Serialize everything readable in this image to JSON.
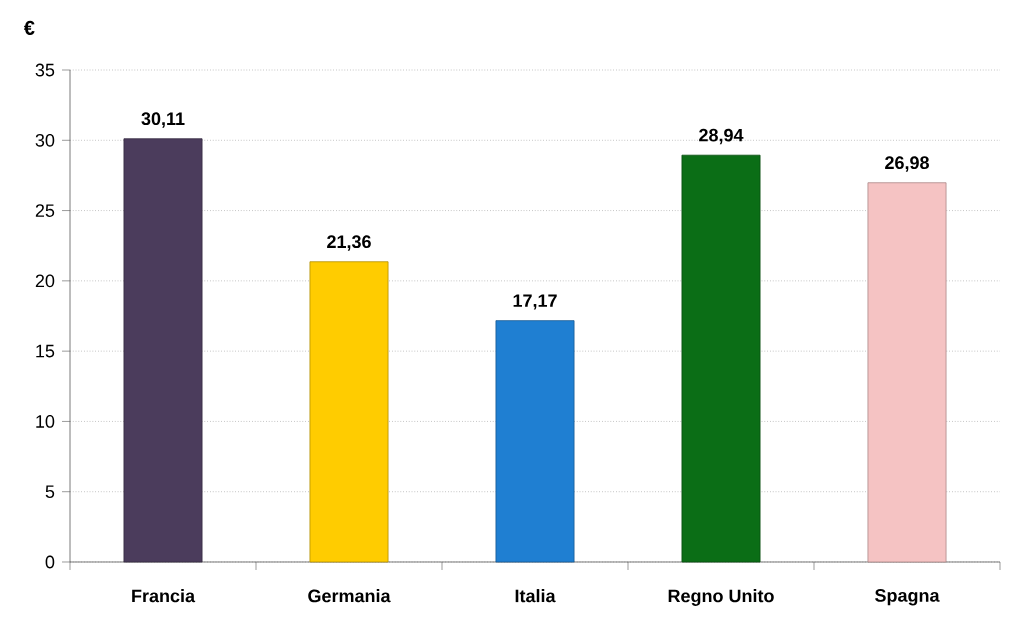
{
  "chart_data": {
    "type": "bar",
    "ylabel": "€",
    "categories": [
      "Francia",
      "Germania",
      "Italia",
      "Regno Unito",
      "Spagna"
    ],
    "values": [
      30.11,
      21.36,
      17.17,
      28.94,
      26.98
    ],
    "value_labels": [
      "30,11",
      "21,36",
      "17,17",
      "28,94",
      "26,98"
    ],
    "colors": [
      "#4b3c5c",
      "#ffcc00",
      "#1f7fd2",
      "#0b6e16",
      "#f5c3c3"
    ],
    "ylim": [
      0,
      35
    ],
    "yticks": [
      0,
      5,
      10,
      15,
      20,
      25,
      30,
      35
    ],
    "grid": "y"
  }
}
